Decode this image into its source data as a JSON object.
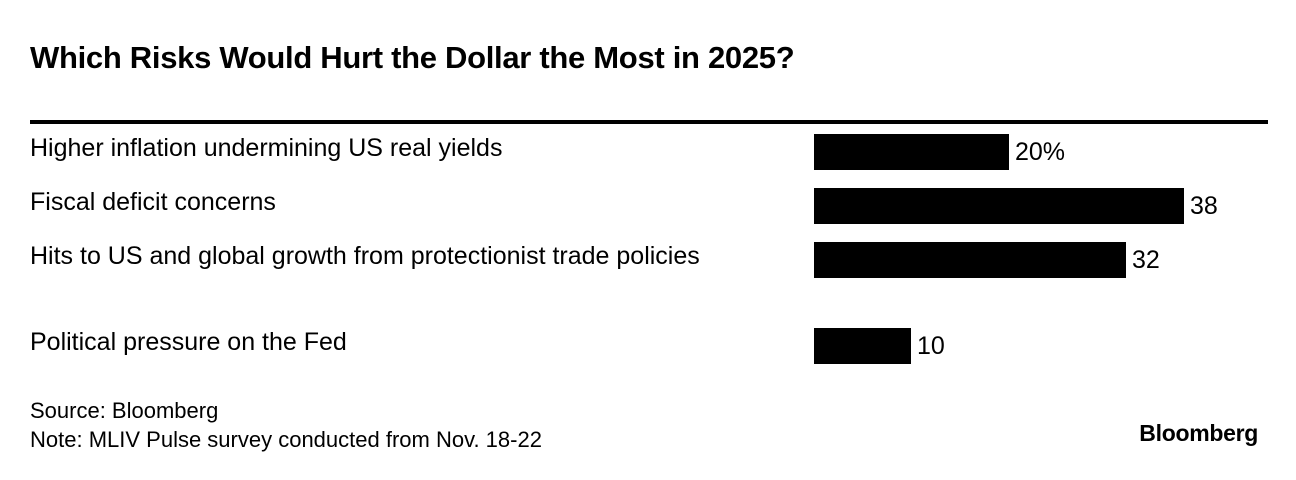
{
  "chart_data": {
    "type": "bar",
    "orientation": "horizontal",
    "title": "Which Risks Would Hurt the Dollar the Most in 2025?",
    "categories": [
      "Higher inflation undermining US real yields",
      "Fiscal deficit concerns",
      "Hits to US and global growth from protectionist trade policies",
      "Political pressure on the Fed"
    ],
    "values": [
      20,
      38,
      32,
      10
    ],
    "value_labels": [
      "20%",
      "38",
      "32",
      "10"
    ],
    "unit": "%",
    "xlim": [
      0,
      38
    ],
    "bar_color": "#000000",
    "xlabel": "",
    "ylabel": ""
  },
  "footer": {
    "source": "Source: Bloomberg",
    "note": "Note: MLIV Pulse survey conducted from Nov. 18-22"
  },
  "brand": {
    "logo_text": "Bloomberg"
  },
  "colors": {
    "background": "#ffffff",
    "text": "#000000",
    "rule": "#000000"
  }
}
